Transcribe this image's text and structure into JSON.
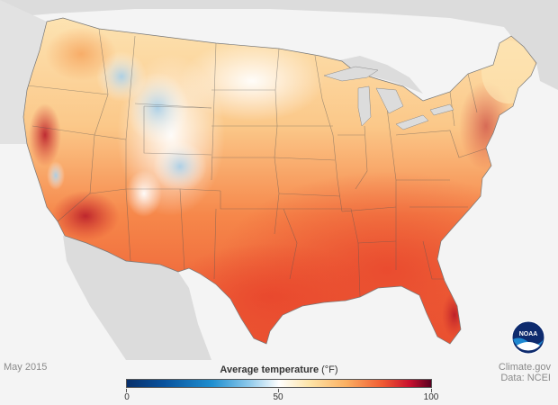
{
  "map": {
    "date": "May 2015",
    "credit_line1": "Climate.gov",
    "credit_line2": "Data: NCEI",
    "legend_title": "Average temperature",
    "legend_unit": "(°F)",
    "legend_ticks": [
      "0",
      "50",
      "100"
    ],
    "logo_text": "NOAA"
  },
  "colors": {
    "background": "#f4f4f4",
    "land_outside": "#d9d9d9",
    "scale_cold": "#08306b",
    "scale_mid": "#ffffff",
    "scale_hot": "#5a0020"
  }
}
